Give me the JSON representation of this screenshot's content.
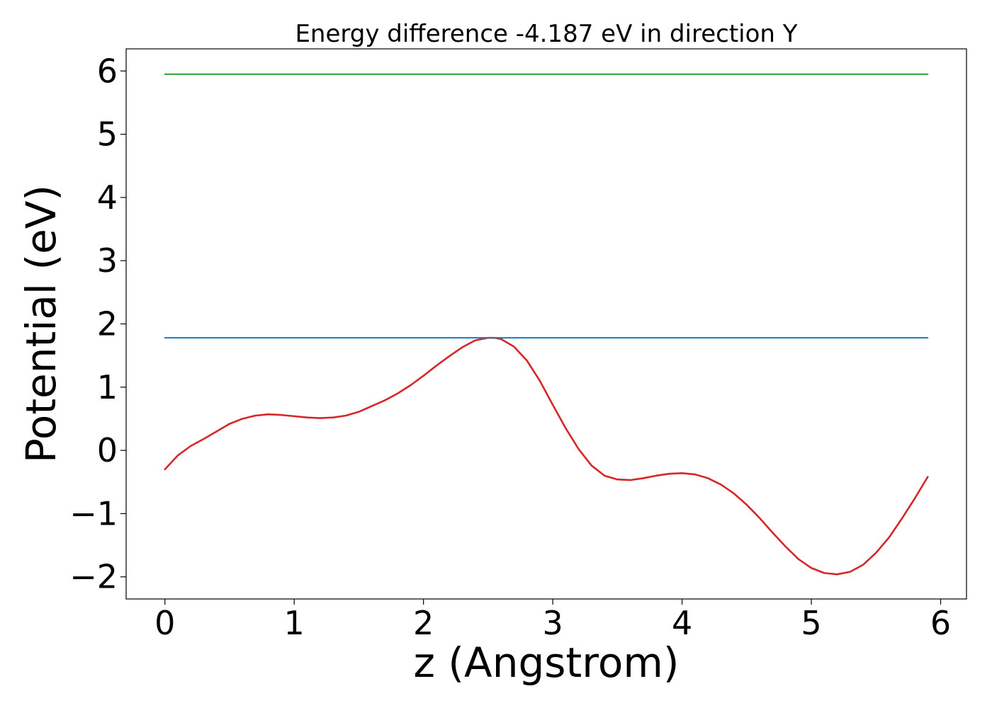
{
  "chart_data": {
    "type": "line",
    "title": "Energy difference -4.187 eV in direction Y",
    "xlabel": "z (Angstrom)",
    "ylabel": "Potential (eV)",
    "xlim": [
      -0.3,
      6.2
    ],
    "ylim": [
      -2.35,
      6.35
    ],
    "x_ticks": [
      0,
      1,
      2,
      3,
      4,
      5,
      6
    ],
    "x_tick_labels": [
      "0",
      "1",
      "2",
      "3",
      "4",
      "5",
      "6"
    ],
    "y_ticks": [
      -2,
      -1,
      0,
      1,
      2,
      3,
      4,
      5,
      6
    ],
    "y_tick_labels": [
      "−2",
      "−1",
      "0",
      "1",
      "2",
      "3",
      "4",
      "5",
      "6"
    ],
    "grid": false,
    "series": [
      {
        "color": "#d62728",
        "x": [
          0.0,
          0.1,
          0.2,
          0.3,
          0.4,
          0.5,
          0.6,
          0.7,
          0.8,
          0.9,
          1.0,
          1.1,
          1.2,
          1.3,
          1.4,
          1.5,
          1.6,
          1.7,
          1.8,
          1.9,
          2.0,
          2.1,
          2.2,
          2.3,
          2.4,
          2.5,
          2.55,
          2.6,
          2.7,
          2.8,
          2.9,
          3.0,
          3.1,
          3.2,
          3.3,
          3.4,
          3.5,
          3.6,
          3.7,
          3.8,
          3.9,
          4.0,
          4.1,
          4.2,
          4.3,
          4.4,
          4.5,
          4.6,
          4.7,
          4.8,
          4.9,
          5.0,
          5.1,
          5.2,
          5.3,
          5.4,
          5.5,
          5.6,
          5.7,
          5.8,
          5.9
        ],
        "y": [
          -0.3,
          -0.08,
          0.07,
          0.18,
          0.3,
          0.42,
          0.5,
          0.55,
          0.57,
          0.56,
          0.54,
          0.52,
          0.51,
          0.52,
          0.55,
          0.61,
          0.7,
          0.79,
          0.9,
          1.03,
          1.18,
          1.34,
          1.49,
          1.63,
          1.74,
          1.78,
          1.78,
          1.76,
          1.64,
          1.42,
          1.1,
          0.72,
          0.35,
          0.02,
          -0.24,
          -0.4,
          -0.46,
          -0.47,
          -0.44,
          -0.4,
          -0.37,
          -0.36,
          -0.38,
          -0.44,
          -0.54,
          -0.68,
          -0.86,
          -1.07,
          -1.3,
          -1.52,
          -1.72,
          -1.86,
          -1.94,
          -1.96,
          -1.92,
          -1.81,
          -1.62,
          -1.38,
          -1.08,
          -0.76,
          -0.42
        ]
      },
      {
        "color": "#1f77b4",
        "x": [
          0.0,
          5.9
        ],
        "y": [
          1.78,
          1.78
        ]
      },
      {
        "color": "#2ca02c",
        "x": [
          0.0,
          5.9
        ],
        "y": [
          5.95,
          5.95
        ]
      }
    ]
  }
}
